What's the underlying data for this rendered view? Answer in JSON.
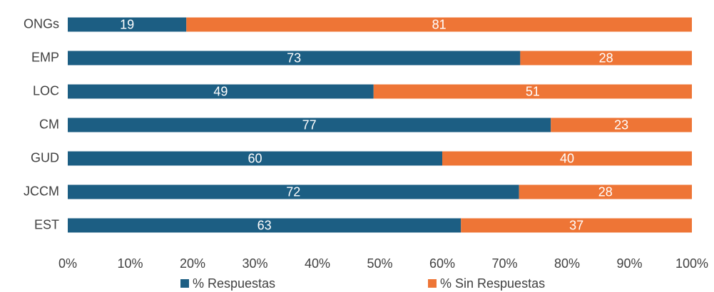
{
  "chart_data": {
    "type": "stacked_barh",
    "categories": [
      "ONGs",
      "EMP",
      "LOC",
      "CM",
      "GUD",
      "JCCM",
      "EST"
    ],
    "series": [
      {
        "name": "% Respuestas",
        "color": "#1c5e83",
        "values": [
          19,
          72.5,
          49,
          77.4,
          60,
          72.3,
          63
        ],
        "value_labels": [
          "19",
          "73",
          "49",
          "77",
          "60",
          "72",
          "63"
        ]
      },
      {
        "name": "% Sin Respuestas",
        "color": "#ee7536",
        "values": [
          81,
          27.5,
          51,
          22.6,
          40,
          27.7,
          37
        ],
        "value_labels": [
          "81",
          "28",
          "51",
          "23",
          "40",
          "28",
          "37"
        ]
      }
    ],
    "xlim": [
      0,
      100
    ],
    "xticks": [
      {
        "value": 0,
        "label": "0%"
      },
      {
        "value": 10,
        "label": "10%"
      },
      {
        "value": 20,
        "label": "20%"
      },
      {
        "value": 30,
        "label": "30%"
      },
      {
        "value": 40,
        "label": "40%"
      },
      {
        "value": 50,
        "label": "50%"
      },
      {
        "value": 60,
        "label": "60%"
      },
      {
        "value": 70,
        "label": "70%"
      },
      {
        "value": 80,
        "label": "80%"
      },
      {
        "value": 90,
        "label": "90%"
      },
      {
        "value": 100,
        "label": "100%"
      }
    ],
    "legend": "bottom"
  }
}
